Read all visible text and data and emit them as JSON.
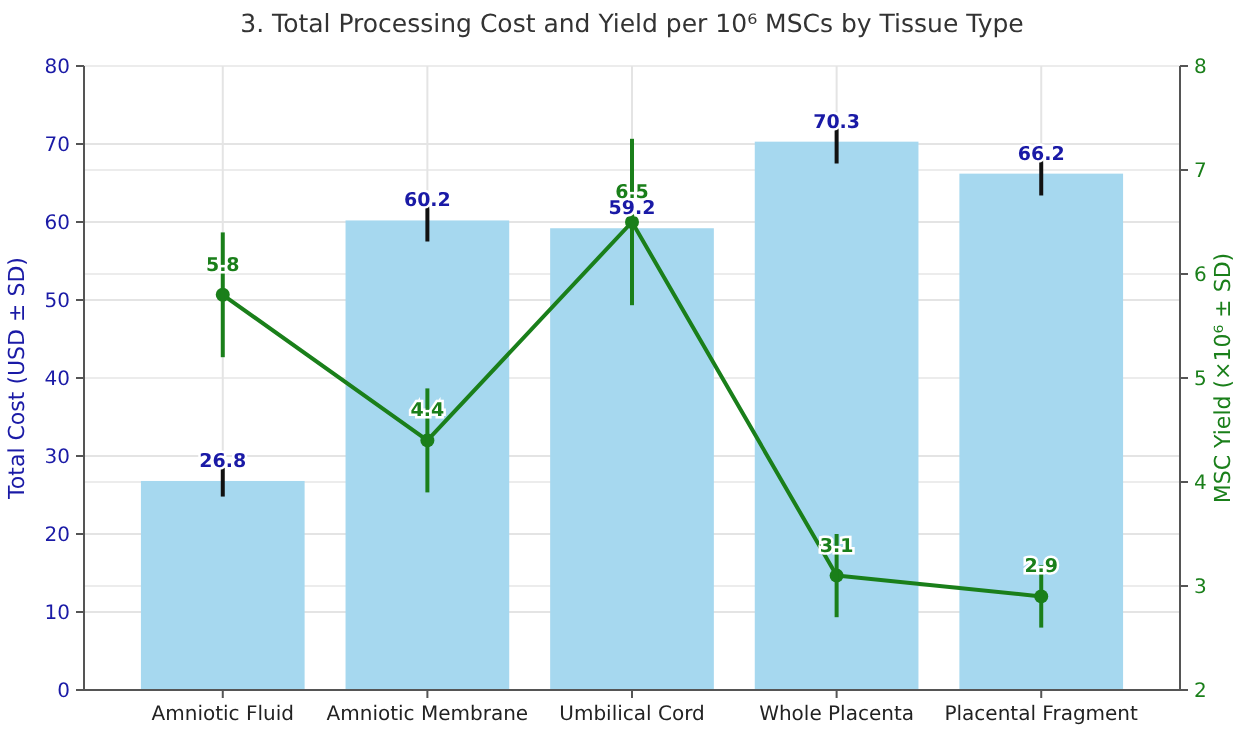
{
  "chart_data": {
    "type": "bar",
    "title": "3. Total Processing Cost and Yield per 10⁶ MSCs by Tissue Type",
    "ylabel": "Total Cost (USD ± SD)",
    "y2label": "MSC Yield (×10⁶ ± SD)",
    "categories": [
      "Amniotic Fluid",
      "Amniotic Membrane",
      "Umbilical Cord",
      "Whole Placenta",
      "Placental Fragment"
    ],
    "series": [
      {
        "color": "#a6d8ef",
        "values": [
          26.8,
          60.2,
          59.2,
          70.3,
          66.2
        ],
        "errors": [
          2,
          2.7,
          null,
          2.8,
          2.8
        ]
      },
      {
        "type": "line",
        "axis": "y2",
        "color": "#1a7f1a",
        "values": [
          5.8,
          4.4,
          6.5,
          3.1,
          2.9
        ],
        "errors": [
          0.6,
          0.5,
          0.8,
          0.4,
          0.3
        ],
        "marker": "circle"
      }
    ],
    "data_labels": true,
    "ylim": [
      0,
      80
    ],
    "yticks": [
      0,
      10,
      20,
      30,
      40,
      50,
      60,
      70,
      80
    ],
    "y2lim": [
      2,
      8
    ],
    "y2ticks": [
      2,
      3,
      4,
      5,
      6,
      7,
      8
    ],
    "grid": true
  }
}
